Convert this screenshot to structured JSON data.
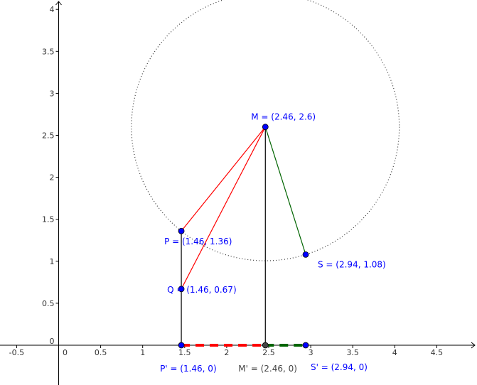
{
  "chart_data": {
    "type": "geometry",
    "xlim": [
      -0.7,
      4.97
    ],
    "ylim": [
      -0.48,
      4.1
    ],
    "x_ticks": [
      -0.5,
      0,
      0.5,
      1,
      1.5,
      2,
      2.5,
      3,
      3.5,
      4,
      4.5
    ],
    "x_tick_labels": [
      "-0.5",
      "0",
      "0.5",
      "1",
      "1.5",
      "2",
      "2.5",
      "3",
      "3.5",
      "4",
      "4.5"
    ],
    "y_ticks": [
      0.5,
      1,
      1.5,
      2,
      2.5,
      3,
      3.5,
      4
    ],
    "y_tick_labels": [
      "0.5",
      "1",
      "1.5",
      "2",
      "2.5",
      "3",
      "3.5",
      "4"
    ],
    "origin_label": "0",
    "points": [
      {
        "name": "M",
        "x": 2.46,
        "y": 2.6,
        "label": "M = (2.46, 2.6)",
        "color": "#0000ff"
      },
      {
        "name": "P",
        "x": 1.46,
        "y": 1.36,
        "label": "P = (1.46, 1.36)",
        "color": "#0000ff"
      },
      {
        "name": "Q",
        "x": 1.46,
        "y": 0.67,
        "label": "Q = (1.46, 0.67)",
        "color": "#0000ff"
      },
      {
        "name": "S",
        "x": 2.94,
        "y": 1.08,
        "label": "S = (2.94, 1.08)",
        "color": "#0000ff"
      },
      {
        "name": "P'",
        "x": 1.46,
        "y": 0,
        "label": "P' = (1.46, 0)",
        "color": "#0000ff"
      },
      {
        "name": "M'",
        "x": 2.46,
        "y": 0,
        "label": "M' = (2.46, 0)",
        "color": "#444444"
      },
      {
        "name": "S'",
        "x": 2.94,
        "y": 0,
        "label": "S' = (2.94, 0)",
        "color": "#0000ff"
      }
    ],
    "circle": {
      "center": "M",
      "through": "S",
      "style": "dotted",
      "color": "#333333"
    },
    "segments": [
      {
        "from": "M",
        "to": "P",
        "color": "#ff0000",
        "style": "solid"
      },
      {
        "from": "M",
        "to": "Q",
        "color": "#ff0000",
        "style": "solid"
      },
      {
        "from": "M",
        "to": "S",
        "color": "#006400",
        "style": "solid"
      },
      {
        "from": "P",
        "to": "P'",
        "color": "#000000",
        "style": "solid"
      },
      {
        "from": "M",
        "to": "M'",
        "color": "#000000",
        "style": "solid"
      },
      {
        "from": "P'",
        "to": "M'",
        "color": "#ff0000",
        "style": "dashed"
      },
      {
        "from": "M'",
        "to": "S'",
        "color": "#006400",
        "style": "dashed"
      }
    ]
  }
}
